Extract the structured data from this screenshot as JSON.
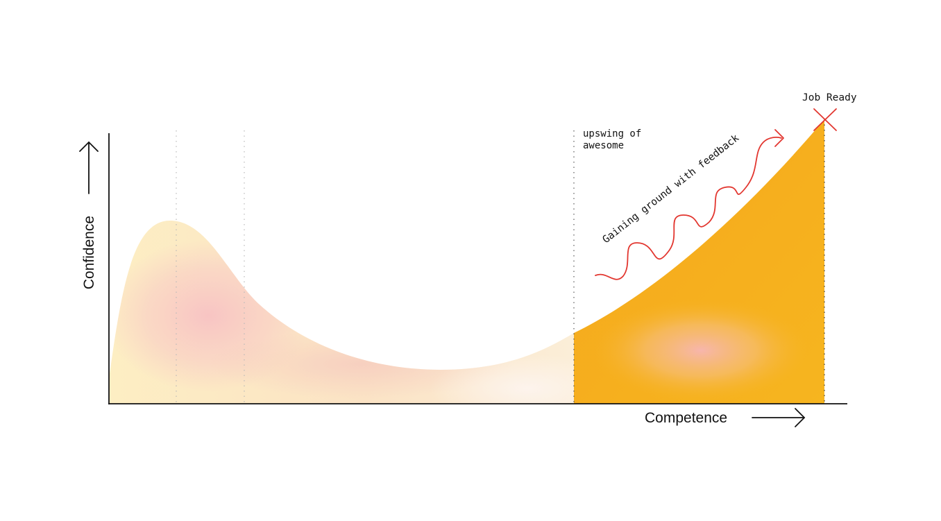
{
  "axes": {
    "y_label": "Confidence",
    "x_label": "Competence"
  },
  "annotations": {
    "upswing": [
      "upswing of",
      "awesome"
    ],
    "feedback": "Gaining ground with feedback",
    "job_ready": "Job Ready"
  },
  "colors": {
    "pale_yellow": "#fdeec3",
    "blush_pink": "#f8c9c6",
    "amber": "#f5b01f",
    "feedback_red": "#e2362f",
    "axis_black": "#111111",
    "guide_gray": "#b9b9b9"
  }
}
